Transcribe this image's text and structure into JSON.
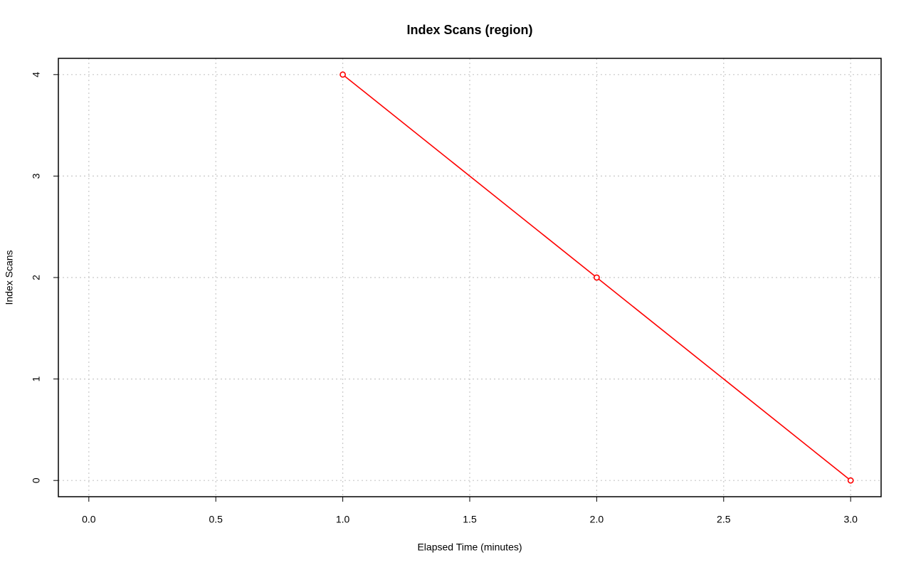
{
  "chart_data": {
    "type": "line",
    "title": "Index Scans (region)",
    "x_label": "Elapsed Time (minutes)",
    "y_label": "Index Scans",
    "x": [
      1,
      2,
      3
    ],
    "series": [
      {
        "color": "#ff0000",
        "values": [
          4,
          2,
          0
        ]
      }
    ],
    "xlim": [
      -0.12,
      3.12
    ],
    "ylim": [
      -0.16,
      4.16
    ],
    "xticks": [
      {
        "value": 0,
        "label": "0.0"
      },
      0.5,
      {
        "value": 1,
        "label": "1.0"
      },
      1.5,
      {
        "value": 2,
        "label": "2.0"
      },
      2.5,
      {
        "value": 3,
        "label": "3.0"
      }
    ],
    "yticks": [
      0,
      1,
      2,
      3,
      4
    ],
    "grid": true,
    "markers": "open-circle"
  }
}
